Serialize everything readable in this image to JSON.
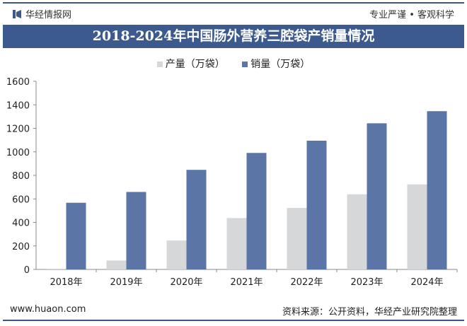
{
  "header": {
    "brand": "华经情报网",
    "slogan": "专业严谨 • 客观科学"
  },
  "footer": {
    "website": "www.huaon.com",
    "source": "资料来源：公开资料，华经产业研究院整理"
  },
  "colors": {
    "production": "#d6d7d9",
    "sales": "#5b75a6",
    "band": "#3d5a8e"
  },
  "chart_data": {
    "type": "bar",
    "title": "2018-2024年中国肠外营养三腔袋产销量情况",
    "categories": [
      "2018年",
      "2019年",
      "2020年",
      "2021年",
      "2022年",
      "2023年",
      "2024年"
    ],
    "series": [
      {
        "name": "产量（万袋）",
        "values": [
          6,
          76,
          246,
          437,
          523,
          639,
          723
        ]
      },
      {
        "name": "销量（万袋）",
        "values": [
          567,
          659,
          847,
          991,
          1095,
          1243,
          1346
        ]
      }
    ],
    "ylim": [
      0,
      1600
    ],
    "yticks": [
      "0",
      "200",
      "400",
      "600",
      "800",
      "1000",
      "1200",
      "1400",
      "1600"
    ],
    "grid": false,
    "legend": "top"
  }
}
